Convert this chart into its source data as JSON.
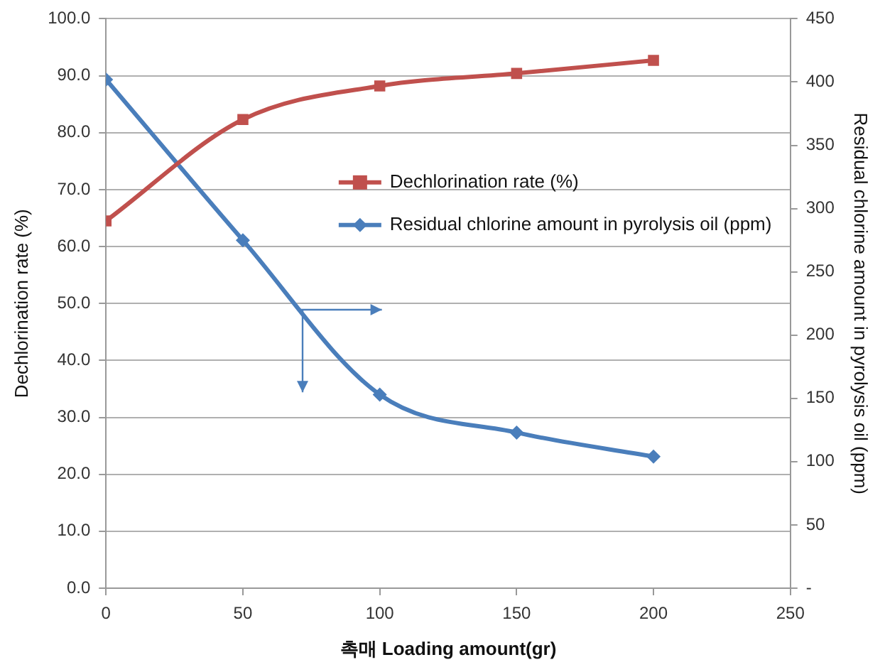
{
  "chart_data": {
    "type": "line",
    "x": [
      0,
      50,
      100,
      150,
      200
    ],
    "xlabel": "촉매 Loading amount(gr)",
    "ylabel": "Dechlorination rate (%)",
    "y2label": "Residual chlorine amount in pyrolysis oil (ppm)",
    "series": [
      {
        "name": "Dechlorination rate (%)",
        "color": "#c0504d",
        "marker": "square",
        "values": [
          64.5,
          82.3,
          88.2,
          90.4,
          92.7
        ]
      },
      {
        "name": "Residual chlorine amount in pyrolysis oil (ppm)",
        "color": "#4a7ebb",
        "marker": "diamond",
        "axis": "y2",
        "values": [
          402,
          275,
          153,
          123,
          104
        ]
      }
    ],
    "xlim": [
      0,
      250
    ],
    "xticks": [
      0,
      50,
      100,
      150,
      200,
      250
    ],
    "ylim": [
      0,
      100
    ],
    "yticks": [
      {
        "value": 0,
        "label": "0.0"
      },
      {
        "value": 10,
        "label": "10.0"
      },
      {
        "value": 20,
        "label": "20.0"
      },
      {
        "value": 30,
        "label": "30.0"
      },
      {
        "value": 40,
        "label": "40.0"
      },
      {
        "value": 50,
        "label": "50.0"
      },
      {
        "value": 60,
        "label": "60.0"
      },
      {
        "value": 70,
        "label": "70.0"
      },
      {
        "value": 80,
        "label": "80.0"
      },
      {
        "value": 90,
        "label": "90.0"
      },
      {
        "value": 100,
        "label": "100.0"
      }
    ],
    "y2lim": [
      0,
      450
    ],
    "y2ticks": [
      {
        "value": 0,
        "label": "-"
      },
      50,
      100,
      150,
      200,
      250,
      300,
      350,
      400,
      450
    ],
    "grid": "y",
    "legend": "right"
  }
}
